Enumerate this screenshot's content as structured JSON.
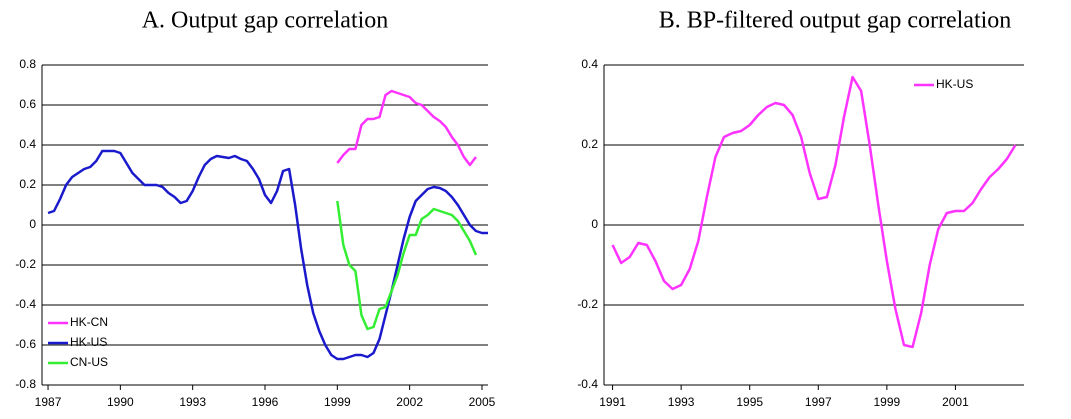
{
  "chart_data": [
    {
      "type": "line",
      "title": "A. Output gap correlation",
      "xlim": [
        1986.75,
        2005.25
      ],
      "xticks": [
        1987,
        1990,
        1993,
        1996,
        1999,
        2002,
        2005
      ],
      "ylim": [
        -0.8,
        0.8
      ],
      "yticks": [
        -0.8,
        -0.6,
        -0.4,
        -0.2,
        0,
        0.2,
        0.4,
        0.6,
        0.8
      ],
      "grid": true,
      "legend": "lower left",
      "series": [
        {
          "name": "HK-CN",
          "color": "#ff33ff",
          "x": [
            1999,
            1999.25,
            1999.5,
            1999.75,
            2000,
            2000.25,
            2000.5,
            2000.75,
            2001,
            2001.25,
            2001.5,
            2001.75,
            2002,
            2002.25,
            2002.5,
            2002.75,
            2003,
            2003.25,
            2003.5,
            2003.75,
            2004,
            2004.25,
            2004.5,
            2004.75
          ],
          "values": [
            0.31,
            0.35,
            0.38,
            0.38,
            0.5,
            0.53,
            0.53,
            0.54,
            0.65,
            0.67,
            0.66,
            0.65,
            0.64,
            0.61,
            0.6,
            0.57,
            0.54,
            0.52,
            0.49,
            0.44,
            0.4,
            0.34,
            0.3,
            0.34
          ]
        },
        {
          "name": "HK-US",
          "color": "#1a1acc",
          "x": [
            1987,
            1987.25,
            1987.5,
            1987.75,
            1988,
            1988.25,
            1988.5,
            1988.75,
            1989,
            1989.25,
            1989.5,
            1989.75,
            1990,
            1990.25,
            1990.5,
            1990.75,
            1991,
            1991.25,
            1991.5,
            1991.75,
            1992,
            1992.25,
            1992.5,
            1992.75,
            1993,
            1993.25,
            1993.5,
            1993.75,
            1994,
            1994.25,
            1994.5,
            1994.75,
            1995,
            1995.25,
            1995.5,
            1995.75,
            1996,
            1996.25,
            1996.5,
            1996.75,
            1997,
            1997.25,
            1997.5,
            1997.75,
            1998,
            1998.25,
            1998.5,
            1998.75,
            1999,
            1999.25,
            1999.5,
            1999.75,
            2000,
            2000.25,
            2000.5,
            2000.75,
            2001,
            2001.25,
            2001.5,
            2001.75,
            2002,
            2002.25,
            2002.5,
            2002.75,
            2003,
            2003.25,
            2003.5,
            2003.75,
            2004,
            2004.25,
            2004.5,
            2004.75,
            2005,
            2005.25
          ],
          "values": [
            0.06,
            0.07,
            0.13,
            0.2,
            0.24,
            0.26,
            0.28,
            0.29,
            0.32,
            0.37,
            0.37,
            0.37,
            0.36,
            0.31,
            0.26,
            0.23,
            0.2,
            0.2,
            0.2,
            0.19,
            0.16,
            0.14,
            0.11,
            0.12,
            0.17,
            0.24,
            0.3,
            0.33,
            0.345,
            0.34,
            0.335,
            0.345,
            0.33,
            0.32,
            0.28,
            0.23,
            0.15,
            0.11,
            0.17,
            0.27,
            0.28,
            0.1,
            -0.12,
            -0.3,
            -0.44,
            -0.53,
            -0.6,
            -0.65,
            -0.67,
            -0.67,
            -0.66,
            -0.65,
            -0.65,
            -0.66,
            -0.64,
            -0.57,
            -0.45,
            -0.33,
            -0.2,
            -0.07,
            0.04,
            0.12,
            0.15,
            0.18,
            0.19,
            0.185,
            0.17,
            0.14,
            0.1,
            0.05,
            0,
            -0.03,
            -0.04,
            -0.04
          ]
        },
        {
          "name": "CN-US",
          "color": "#33ee33",
          "x": [
            1999,
            1999.25,
            1999.5,
            1999.75,
            2000,
            2000.25,
            2000.5,
            2000.75,
            2001,
            2001.25,
            2001.5,
            2001.75,
            2002,
            2002.25,
            2002.5,
            2002.75,
            2003,
            2003.25,
            2003.5,
            2003.75,
            2004,
            2004.25,
            2004.5,
            2004.75
          ],
          "values": [
            0.12,
            -0.1,
            -0.2,
            -0.23,
            -0.45,
            -0.52,
            -0.51,
            -0.42,
            -0.41,
            -0.33,
            -0.25,
            -0.14,
            -0.05,
            -0.05,
            0.03,
            0.05,
            0.08,
            0.07,
            0.06,
            0.05,
            0.02,
            -0.03,
            -0.08,
            -0.15
          ]
        }
      ]
    },
    {
      "type": "line",
      "title": "B. BP-filtered output gap correlation",
      "xlim": [
        1990.75,
        2003
      ],
      "xticks": [
        1991,
        1993,
        1995,
        1997,
        1999,
        2001
      ],
      "ylim": [
        -0.4,
        0.4
      ],
      "yticks": [
        -0.4,
        -0.2,
        0,
        0.2,
        0.4
      ],
      "grid": true,
      "legend": "upper right",
      "series": [
        {
          "name": "HK-US",
          "color": "#ff33ff",
          "x": [
            1991,
            1991.25,
            1991.5,
            1991.75,
            1992,
            1992.25,
            1992.5,
            1992.75,
            1993,
            1993.25,
            1993.5,
            1993.75,
            1994,
            1994.25,
            1994.5,
            1994.75,
            1995,
            1995.25,
            1995.5,
            1995.75,
            1996,
            1996.25,
            1996.5,
            1996.75,
            1997,
            1997.25,
            1997.5,
            1997.75,
            1998,
            1998.25,
            1998.5,
            1998.75,
            1999,
            1999.25,
            1999.5,
            1999.75,
            2000,
            2000.25,
            2000.5,
            2000.75,
            2001,
            2001.25,
            2001.5,
            2001.75,
            2002,
            2002.25,
            2002.5,
            2002.75
          ],
          "values": [
            -0.05,
            -0.095,
            -0.08,
            -0.045,
            -0.05,
            -0.09,
            -0.14,
            -0.16,
            -0.15,
            -0.11,
            -0.04,
            0.07,
            0.17,
            0.22,
            0.23,
            0.235,
            0.25,
            0.275,
            0.295,
            0.305,
            0.3,
            0.275,
            0.22,
            0.13,
            0.065,
            0.07,
            0.15,
            0.27,
            0.37,
            0.335,
            0.2,
            0.05,
            -0.09,
            -0.21,
            -0.3,
            -0.305,
            -0.22,
            -0.1,
            -0.01,
            0.03,
            0.035,
            0.035,
            0.055,
            0.09,
            0.12,
            0.14,
            0.165,
            0.2
          ]
        }
      ]
    }
  ]
}
